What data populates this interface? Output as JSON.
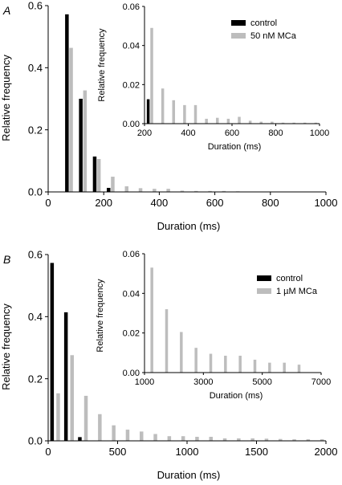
{
  "chart_data": [
    {
      "panel": "A",
      "type": "bar",
      "xlabel": "Duration (ms)",
      "ylabel": "Relative frequency",
      "xlim": [
        0,
        1000
      ],
      "ylim": [
        0,
        0.6
      ],
      "xticks": [
        0,
        200,
        400,
        600,
        800,
        1000
      ],
      "yticks": [
        0.0,
        0.2,
        0.4,
        0.6
      ],
      "ytick_labels": [
        "0.0",
        "0.2",
        "0.4",
        "0.6"
      ],
      "bin_width": 50,
      "x": [
        75,
        125,
        175,
        225,
        275,
        325,
        375,
        425,
        475,
        525,
        575,
        625,
        675,
        725,
        775,
        825,
        875,
        925,
        975
      ],
      "series": [
        {
          "name": "control",
          "color": "#000000",
          "values": [
            0.572,
            0.3,
            0.114,
            0.013,
            0,
            0,
            0,
            0,
            0,
            0,
            0,
            0,
            0,
            0,
            0,
            0,
            0,
            0,
            0
          ]
        },
        {
          "name": "50 nM MCa",
          "color": "#bdbdbd",
          "values": [
            0.464,
            0.327,
            0.106,
            0.049,
            0.018,
            0.012,
            0.01,
            0.01,
            0.004,
            0.003,
            0.003,
            0.003,
            0.002,
            0.001,
            0.001,
            0.001,
            0.001,
            0.001,
            0.001
          ]
        }
      ],
      "legend": "top-right",
      "inset": {
        "xlabel": "Duration (ms)",
        "ylabel": "Relative frequency",
        "xlim": [
          200,
          1000
        ],
        "ylim": [
          0,
          0.06
        ],
        "xticks": [
          200,
          400,
          600,
          800,
          1000
        ],
        "yticks": [
          0.0,
          0.02,
          0.04,
          0.06
        ],
        "ytick_labels": [
          "0.00",
          "0.02",
          "0.04",
          "0.06"
        ],
        "x": [
          225,
          275,
          325,
          375,
          425,
          475,
          525,
          575,
          625,
          675,
          725,
          775,
          825,
          875,
          925,
          975
        ],
        "series": [
          {
            "name": "control",
            "color": "#000000",
            "values": [
              0.0125,
              0,
              0,
              0,
              0,
              0,
              0,
              0,
              0,
              0,
              0,
              0,
              0,
              0,
              0,
              0
            ]
          },
          {
            "name": "50 nM MCa",
            "color": "#bdbdbd",
            "values": [
              0.049,
              0.018,
              0.012,
              0.0095,
              0.0095,
              0.0025,
              0.003,
              0.0025,
              0.0035,
              0.0015,
              0.001,
              0.001,
              0.0005,
              0.0005,
              0.0005,
              0.0005
            ]
          }
        ]
      }
    },
    {
      "panel": "B",
      "type": "bar",
      "xlabel": "Duration (ms)",
      "ylabel": "Relative frequency",
      "xlim": [
        0,
        2000
      ],
      "ylim": [
        0,
        0.6
      ],
      "xticks": [
        0,
        500,
        1000,
        1500,
        2000
      ],
      "yticks": [
        0.0,
        0.2,
        0.4,
        0.6
      ],
      "ytick_labels": [
        "0.0",
        "0.2",
        "0.4",
        "0.6"
      ],
      "bin_width": 100,
      "x": [
        50,
        150,
        250,
        350,
        450,
        550,
        650,
        750,
        850,
        950,
        1050,
        1150,
        1250,
        1350,
        1450,
        1550,
        1650,
        1750,
        1850,
        1950
      ],
      "series": [
        {
          "name": "control",
          "color": "#000000",
          "values": [
            0.573,
            0.414,
            0.012,
            0,
            0,
            0,
            0,
            0,
            0,
            0,
            0,
            0,
            0,
            0,
            0,
            0,
            0,
            0,
            0,
            0
          ]
        },
        {
          "name": "1 µM MCa",
          "color": "#bdbdbd",
          "values": [
            0.153,
            0.276,
            0.145,
            0.086,
            0.05,
            0.036,
            0.03,
            0.022,
            0.015,
            0.015,
            0.013,
            0.013,
            0.008,
            0.008,
            0.008,
            0.007,
            0.006,
            0.005,
            0.005,
            0.005
          ]
        }
      ],
      "legend": "top-right",
      "inset": {
        "xlabel": "Duration (ms)",
        "ylabel": "Relative frequency",
        "xlim": [
          1000,
          7000
        ],
        "ylim": [
          0,
          0.06
        ],
        "xticks": [
          1000,
          3000,
          5000,
          7000
        ],
        "yticks": [
          0.0,
          0.02,
          0.04,
          0.06
        ],
        "ytick_labels": [
          "0.00",
          "0.02",
          "0.04",
          "0.06"
        ],
        "x": [
          1250,
          1750,
          2250,
          2750,
          3250,
          3750,
          4250,
          4750,
          5250,
          5750,
          6250
        ],
        "series": [
          {
            "name": "control",
            "color": "#000000",
            "values": [
              0,
              0,
              0,
              0,
              0,
              0,
              0,
              0,
              0,
              0,
              0
            ]
          },
          {
            "name": "1 µM MCa",
            "color": "#bdbdbd",
            "values": [
              0.053,
              0.032,
              0.0205,
              0.0125,
              0.0095,
              0.0085,
              0.0085,
              0.0065,
              0.005,
              0.005,
              0.004
            ]
          }
        ]
      }
    }
  ]
}
